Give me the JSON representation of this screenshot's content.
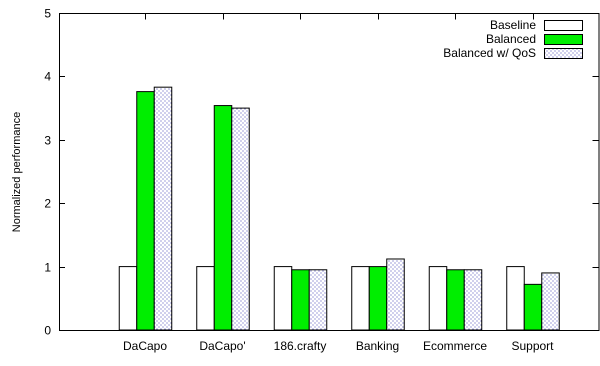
{
  "chart_data": {
    "type": "bar",
    "title": "",
    "xlabel": "",
    "ylabel": "Normalized performance",
    "ylim": [
      0,
      5
    ],
    "yticks": [
      "0",
      "1",
      "2",
      "3",
      "4",
      "5"
    ],
    "categories": [
      "DaCapo",
      "DaCapo'",
      "186.crafty",
      "Banking",
      "Ecommerce",
      "Support"
    ],
    "series": [
      {
        "name": "Baseline",
        "values": [
          1.0,
          1.0,
          1.0,
          1.0,
          1.0,
          1.0
        ]
      },
      {
        "name": "Balanced",
        "values": [
          3.76,
          3.54,
          0.95,
          1.0,
          0.95,
          0.72
        ]
      },
      {
        "name": "Balanced w/ QoS",
        "values": [
          3.83,
          3.5,
          0.95,
          1.12,
          0.95,
          0.9
        ]
      }
    ],
    "legend_position": "top-right",
    "grid": false,
    "colors": {
      "baseline": "#ffffff",
      "balanced": "#00ee00",
      "qos_pattern": "#1a1aa6",
      "stroke": "#000000"
    }
  }
}
